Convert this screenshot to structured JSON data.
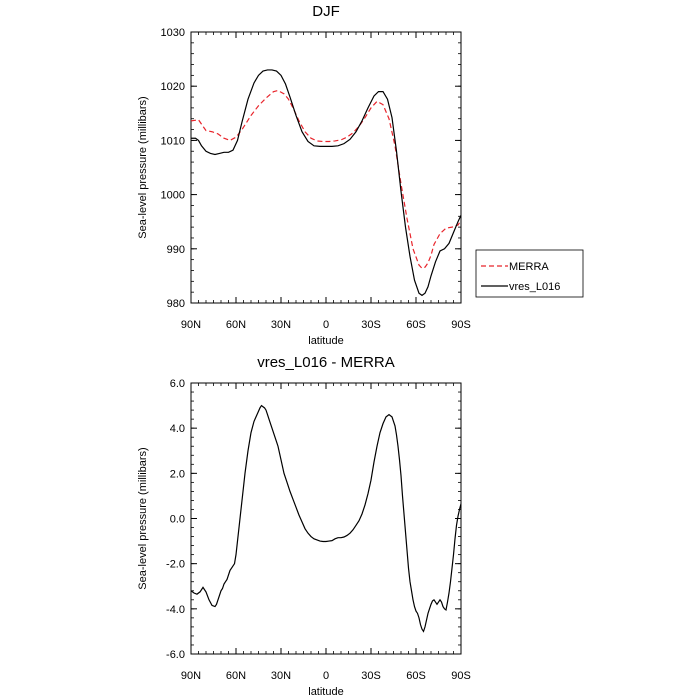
{
  "chart_data": [
    {
      "type": "line",
      "title": "DJF",
      "xlabel": "latitude",
      "ylabel": "Sea-level pressure (millibars)",
      "xlim": [
        90,
        -90
      ],
      "ylim": [
        980,
        1030
      ],
      "x_ticks": [
        {
          "value": 90,
          "label": "90N"
        },
        {
          "value": 60,
          "label": "60N"
        },
        {
          "value": 30,
          "label": "30N"
        },
        {
          "value": 0,
          "label": "0"
        },
        {
          "value": -30,
          "label": "30S"
        },
        {
          "value": -60,
          "label": "60S"
        },
        {
          "value": -90,
          "label": "90S"
        }
      ],
      "y_ticks": [
        {
          "value": 980,
          "label": "980"
        },
        {
          "value": 990,
          "label": "990"
        },
        {
          "value": 1000,
          "label": "1000"
        },
        {
          "value": 1010,
          "label": "1010"
        },
        {
          "value": 1020,
          "label": "1020"
        },
        {
          "value": 1030,
          "label": "1030"
        }
      ],
      "legend": "outside-right",
      "series": [
        {
          "name": "MERRA",
          "color": "#e8242b",
          "dash": true,
          "x": [
            90,
            85,
            82,
            80,
            76,
            72,
            68,
            64,
            60,
            56,
            50,
            45,
            40,
            35,
            32,
            28,
            25,
            22,
            18,
            14,
            10,
            6,
            2,
            -2,
            -6,
            -10,
            -14,
            -18,
            -22,
            -26,
            -30,
            -34,
            -38,
            -42,
            -46,
            -50,
            -54,
            -58,
            -62,
            -64,
            -66,
            -68,
            -70,
            -72,
            -76,
            -80,
            -84,
            -88,
            -90
          ],
          "values": [
            1013.6,
            1013.8,
            1012.6,
            1011.8,
            1011.6,
            1011.2,
            1010.4,
            1010.0,
            1010.6,
            1012.0,
            1014.6,
            1016.4,
            1017.8,
            1019.0,
            1019.2,
            1018.6,
            1017.6,
            1016.0,
            1013.6,
            1011.6,
            1010.4,
            1009.9,
            1009.8,
            1009.8,
            1009.9,
            1010.1,
            1010.6,
            1011.4,
            1012.6,
            1014.2,
            1016.0,
            1017.2,
            1016.6,
            1014.0,
            1009.0,
            1002.0,
            995.6,
            990.0,
            987.0,
            986.4,
            986.6,
            987.4,
            988.8,
            990.8,
            992.8,
            993.8,
            994.0,
            994.4,
            995.2
          ]
        },
        {
          "name": "vres_L016",
          "color": "#000000",
          "dash": false,
          "x": [
            90,
            87,
            85,
            83,
            80,
            77,
            74,
            71,
            68,
            65,
            62,
            59,
            56,
            52,
            48,
            45,
            42,
            39,
            36,
            33,
            30,
            27,
            24,
            20,
            16,
            12,
            8,
            4,
            0,
            -4,
            -8,
            -12,
            -16,
            -20,
            -24,
            -28,
            -32,
            -35,
            -38,
            -41,
            -44,
            -47,
            -50,
            -53,
            -56,
            -59,
            -62,
            -64,
            -66,
            -68,
            -70,
            -73,
            -76,
            -79,
            -82,
            -85,
            -88,
            -90
          ],
          "values": [
            1010.4,
            1010.4,
            1010.0,
            1009.0,
            1008.0,
            1007.6,
            1007.4,
            1007.6,
            1007.8,
            1007.8,
            1008.2,
            1010.0,
            1013.4,
            1017.6,
            1020.6,
            1022.0,
            1022.8,
            1023.0,
            1023.0,
            1022.8,
            1022.0,
            1020.4,
            1018.0,
            1014.6,
            1011.6,
            1009.8,
            1009.0,
            1008.9,
            1008.9,
            1008.9,
            1009.0,
            1009.4,
            1010.2,
            1011.6,
            1013.6,
            1016.0,
            1018.2,
            1019.0,
            1019.0,
            1017.6,
            1014.2,
            1008.0,
            1000.6,
            994.0,
            988.6,
            984.2,
            981.8,
            981.4,
            981.8,
            983.0,
            985.0,
            987.6,
            989.6,
            990.0,
            991.0,
            993.0,
            995.0,
            996.2
          ]
        }
      ]
    },
    {
      "type": "line",
      "title": "vres_L016 - MERRA",
      "xlabel": "latitude",
      "ylabel": "Sea-level pressure (millibars)",
      "xlim": [
        90,
        -90
      ],
      "ylim": [
        -6.0,
        6.0
      ],
      "x_ticks": [
        {
          "value": 90,
          "label": "90N"
        },
        {
          "value": 60,
          "label": "60N"
        },
        {
          "value": 30,
          "label": "30N"
        },
        {
          "value": 0,
          "label": "0"
        },
        {
          "value": -30,
          "label": "30S"
        },
        {
          "value": -60,
          "label": "60S"
        },
        {
          "value": -90,
          "label": "90S"
        }
      ],
      "y_ticks": [
        {
          "value": -6,
          "label": "-6.0"
        },
        {
          "value": -4,
          "label": "-4.0"
        },
        {
          "value": -2,
          "label": "-2.0"
        },
        {
          "value": 0,
          "label": "0.0"
        },
        {
          "value": 2,
          "label": "2.0"
        },
        {
          "value": 4,
          "label": "4.0"
        },
        {
          "value": 6,
          "label": "6.0"
        }
      ],
      "series": [
        {
          "name": "vres_L016 - MERRA",
          "color": "#000000",
          "dash": false,
          "x": [
            90,
            88,
            86,
            84,
            82,
            80,
            78,
            76,
            74,
            73,
            72,
            71,
            70,
            69,
            68,
            67,
            66,
            65,
            64,
            63,
            62,
            61,
            60,
            59,
            58,
            57,
            56,
            55,
            54,
            52,
            50,
            48,
            46,
            45,
            44,
            43,
            42,
            41,
            40,
            39,
            38,
            37,
            36,
            35,
            34,
            33,
            32,
            30,
            28,
            26,
            24,
            22,
            20,
            18,
            16,
            14,
            12,
            10,
            8,
            6,
            4,
            2,
            0,
            -2,
            -4,
            -6,
            -8,
            -10,
            -12,
            -14,
            -16,
            -18,
            -20,
            -22,
            -24,
            -26,
            -28,
            -30,
            -32,
            -34,
            -36,
            -38,
            -40,
            -42,
            -44,
            -45,
            -46,
            -47,
            -48,
            -49,
            -50,
            -51,
            -52,
            -53,
            -54,
            -55,
            -56,
            -57,
            -58,
            -59,
            -60,
            -61,
            -62,
            -63,
            -64,
            -65,
            -66,
            -67,
            -68,
            -69,
            -70,
            -71,
            -72,
            -73,
            -74,
            -75,
            -76,
            -77,
            -78,
            -79,
            -80,
            -81,
            -82,
            -83,
            -84,
            -85,
            -86,
            -87,
            -88,
            -89,
            -90
          ],
          "values": [
            -3.2,
            -3.3,
            -3.35,
            -3.25,
            -3.05,
            -3.25,
            -3.6,
            -3.85,
            -3.9,
            -3.8,
            -3.6,
            -3.4,
            -3.2,
            -3.1,
            -2.9,
            -2.8,
            -2.7,
            -2.5,
            -2.3,
            -2.2,
            -2.1,
            -2.0,
            -1.6,
            -1.0,
            -0.4,
            0.2,
            0.8,
            1.4,
            2.0,
            3.0,
            3.8,
            4.3,
            4.6,
            4.75,
            4.9,
            5.0,
            4.95,
            4.9,
            4.8,
            4.6,
            4.4,
            4.2,
            4.0,
            3.8,
            3.6,
            3.4,
            3.2,
            2.6,
            2.0,
            1.6,
            1.2,
            0.85,
            0.5,
            0.15,
            -0.15,
            -0.45,
            -0.65,
            -0.8,
            -0.9,
            -0.95,
            -1.0,
            -1.02,
            -1.02,
            -1.0,
            -0.98,
            -0.9,
            -0.85,
            -0.85,
            -0.82,
            -0.75,
            -0.65,
            -0.5,
            -0.3,
            -0.1,
            0.2,
            0.6,
            1.1,
            1.7,
            2.5,
            3.2,
            3.8,
            4.2,
            4.5,
            4.6,
            4.5,
            4.3,
            4.1,
            3.7,
            3.2,
            2.6,
            1.9,
            1.0,
            0.2,
            -0.6,
            -1.4,
            -2.2,
            -2.8,
            -3.2,
            -3.6,
            -3.9,
            -4.1,
            -4.2,
            -4.4,
            -4.7,
            -4.9,
            -5.0,
            -4.8,
            -4.5,
            -4.2,
            -4.0,
            -3.8,
            -3.65,
            -3.6,
            -3.7,
            -3.8,
            -3.7,
            -3.6,
            -3.7,
            -3.9,
            -4.0,
            -4.05,
            -3.7,
            -3.3,
            -2.8,
            -2.2,
            -1.6,
            -0.9,
            -0.3,
            0.1,
            0.4,
            0.65
          ]
        }
      ]
    }
  ]
}
